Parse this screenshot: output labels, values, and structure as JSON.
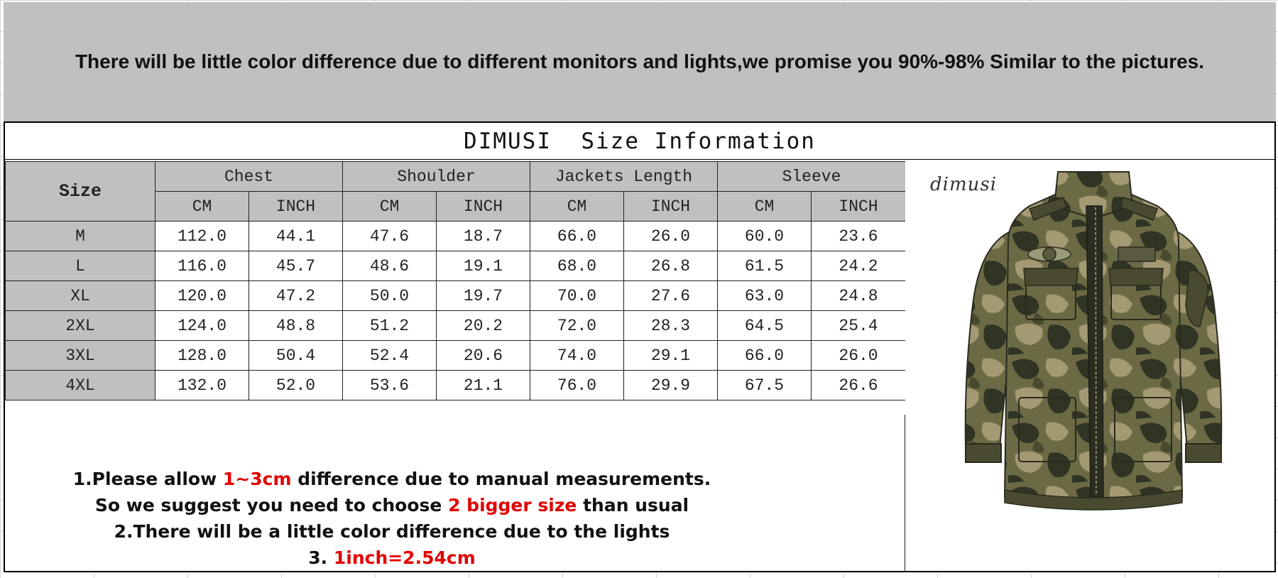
{
  "banner": {
    "text": "There will be little color difference due to different monitors and lights,we promise you 90%-98%  Similar to the pictures."
  },
  "table": {
    "title": "DIMUSI  Size Information",
    "size_header": "Size",
    "group_headers": [
      "Chest",
      "Shoulder",
      "Jackets Length",
      "Sleeve"
    ],
    "unit_headers": [
      "CM",
      "INCH",
      "CM",
      "INCH",
      "CM",
      "INCH",
      "CM",
      "INCH"
    ],
    "rows": [
      {
        "size": "M",
        "cells": [
          "112.0",
          "44.1",
          "47.6",
          "18.7",
          "66.0",
          "26.0",
          "60.0",
          "23.6"
        ]
      },
      {
        "size": "L",
        "cells": [
          "116.0",
          "45.7",
          "48.6",
          "19.1",
          "68.0",
          "26.8",
          "61.5",
          "24.2"
        ]
      },
      {
        "size": "XL",
        "cells": [
          "120.0",
          "47.2",
          "50.0",
          "19.7",
          "70.0",
          "27.6",
          "63.0",
          "24.8"
        ]
      },
      {
        "size": "2XL",
        "cells": [
          "124.0",
          "48.8",
          "51.2",
          "20.2",
          "72.0",
          "28.3",
          "64.5",
          "25.4"
        ]
      },
      {
        "size": "3XL",
        "cells": [
          "128.0",
          "50.4",
          "52.4",
          "20.6",
          "74.0",
          "29.1",
          "66.0",
          "26.0"
        ]
      },
      {
        "size": "4XL",
        "cells": [
          "132.0",
          "52.0",
          "53.6",
          "21.1",
          "76.0",
          "29.9",
          "67.5",
          "26.6"
        ]
      }
    ]
  },
  "notes": {
    "line1_a": "1.Please allow ",
    "line1_red": "1~3cm",
    "line1_b": " difference due to manual measurements.",
    "line2_a": "So we suggest you need to choose ",
    "line2_red": "2 bigger size",
    "line2_b": " than usual",
    "line3": "2.There will be a little color difference due to the lights",
    "line4_a": "3. ",
    "line4_red": "1inch=2.54cm"
  },
  "product": {
    "brand_script": "dimusi",
    "image": "camouflage-jacket"
  },
  "colors": {
    "banner_bg": "#c0c0c0",
    "header_cell_bg": "#c0c0c0",
    "accent_red": "#e20000",
    "camo_dark": "#2f3424",
    "camo_olive": "#6b6a45",
    "camo_tan": "#a39a74"
  }
}
